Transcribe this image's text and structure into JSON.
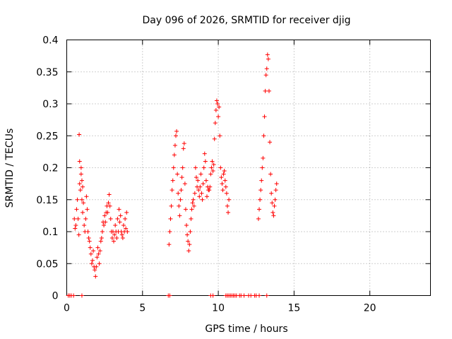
{
  "chart_data": {
    "type": "scatter",
    "title": "Day 096 of 2026, SRMTID for receiver djig",
    "xlabel": "GPS time / hours",
    "ylabel": "SRMTID / TECUs",
    "xlim": [
      0,
      24
    ],
    "ylim": [
      0,
      0.4
    ],
    "xticks": [
      0,
      5,
      10,
      15,
      20
    ],
    "xtick_labels": [
      "0",
      "5",
      "10",
      "15",
      "20"
    ],
    "yticks": [
      0,
      0.05,
      0.1,
      0.15,
      0.2,
      0.25,
      0.3,
      0.35,
      0.4
    ],
    "ytick_labels": [
      "0",
      "0.05",
      "0.1",
      "0.15",
      "0.2",
      "0.25",
      "0.3",
      "0.35",
      "0.4"
    ],
    "grid": true,
    "marker": "plus",
    "color": "#ff0000",
    "series": [
      {
        "name": "SRMTID",
        "points": [
          [
            0.5,
            0.12
          ],
          [
            0.55,
            0.105
          ],
          [
            0.6,
            0.11
          ],
          [
            0.65,
            0.135
          ],
          [
            0.7,
            0.15
          ],
          [
            0.75,
            0.12
          ],
          [
            0.8,
            0.095
          ],
          [
            0.85,
            0.175
          ],
          [
            0.9,
            0.165
          ],
          [
            0.95,
            0.2
          ],
          [
            1.0,
            0.15
          ],
          [
            1.05,
            0.13
          ],
          [
            1.1,
            0.145
          ],
          [
            1.15,
            0.11
          ],
          [
            1.2,
            0.1
          ],
          [
            1.25,
            0.12
          ],
          [
            1.3,
            0.155
          ],
          [
            1.35,
            0.135
          ],
          [
            1.4,
            0.1
          ],
          [
            1.45,
            0.09
          ],
          [
            1.5,
            0.085
          ],
          [
            0.82,
            0.252
          ],
          [
            0.85,
            0.21
          ],
          [
            0.95,
            0.19
          ],
          [
            1.0,
            0.18
          ],
          [
            1.05,
            0.17
          ],
          [
            1.55,
            0.075
          ],
          [
            1.6,
            0.065
          ],
          [
            1.65,
            0.05
          ],
          [
            1.7,
            0.055
          ],
          [
            1.75,
            0.07
          ],
          [
            1.8,
            0.045
          ],
          [
            1.85,
            0.04
          ],
          [
            1.9,
            0.03
          ],
          [
            1.95,
            0.045
          ],
          [
            2.0,
            0.06
          ],
          [
            2.05,
            0.075
          ],
          [
            2.1,
            0.065
          ],
          [
            2.15,
            0.05
          ],
          [
            2.2,
            0.07
          ],
          [
            2.25,
            0.085
          ],
          [
            2.3,
            0.09
          ],
          [
            2.35,
            0.1
          ],
          [
            2.4,
            0.115
          ],
          [
            2.45,
            0.11
          ],
          [
            2.5,
            0.125
          ],
          [
            2.55,
            0.115
          ],
          [
            2.6,
            0.13
          ],
          [
            2.65,
            0.14
          ],
          [
            2.7,
            0.13
          ],
          [
            2.75,
            0.145
          ],
          [
            2.8,
            0.158
          ],
          [
            2.85,
            0.14
          ],
          [
            2.9,
            0.12
          ],
          [
            2.95,
            0.1
          ],
          [
            3.0,
            0.09
          ],
          [
            3.05,
            0.1
          ],
          [
            3.1,
            0.085
          ],
          [
            3.15,
            0.095
          ],
          [
            3.2,
            0.11
          ],
          [
            3.25,
            0.1
          ],
          [
            3.3,
            0.09
          ],
          [
            3.35,
            0.12
          ],
          [
            3.4,
            0.1
          ],
          [
            3.45,
            0.135
          ],
          [
            3.5,
            0.115
          ],
          [
            3.55,
            0.125
          ],
          [
            3.6,
            0.1
          ],
          [
            3.65,
            0.095
          ],
          [
            3.7,
            0.09
          ],
          [
            3.75,
            0.11
          ],
          [
            3.8,
            0.1
          ],
          [
            3.85,
            0.12
          ],
          [
            3.9,
            0.105
          ],
          [
            3.95,
            0.13
          ],
          [
            4.0,
            0.1
          ],
          [
            6.75,
            0.08
          ],
          [
            6.8,
            0.1
          ],
          [
            6.85,
            0.12
          ],
          [
            6.9,
            0.14
          ],
          [
            6.95,
            0.165
          ],
          [
            7.0,
            0.18
          ],
          [
            7.05,
            0.2
          ],
          [
            7.1,
            0.22
          ],
          [
            7.15,
            0.235
          ],
          [
            7.2,
            0.25
          ],
          [
            7.25,
            0.257
          ],
          [
            7.3,
            0.19
          ],
          [
            7.35,
            0.16
          ],
          [
            7.4,
            0.14
          ],
          [
            7.45,
            0.125
          ],
          [
            7.5,
            0.15
          ],
          [
            7.55,
            0.165
          ],
          [
            7.6,
            0.185
          ],
          [
            7.65,
            0.2
          ],
          [
            7.7,
            0.23
          ],
          [
            7.75,
            0.238
          ],
          [
            7.8,
            0.175
          ],
          [
            7.85,
            0.135
          ],
          [
            7.9,
            0.11
          ],
          [
            7.95,
            0.095
          ],
          [
            8.0,
            0.085
          ],
          [
            8.05,
            0.07
          ],
          [
            8.1,
            0.08
          ],
          [
            8.15,
            0.1
          ],
          [
            8.2,
            0.12
          ],
          [
            8.25,
            0.135
          ],
          [
            8.3,
            0.145
          ],
          [
            8.35,
            0.15
          ],
          [
            8.4,
            0.14
          ],
          [
            8.45,
            0.16
          ],
          [
            8.5,
            0.2
          ],
          [
            8.55,
            0.185
          ],
          [
            8.6,
            0.17
          ],
          [
            8.65,
            0.18
          ],
          [
            8.7,
            0.165
          ],
          [
            8.75,
            0.155
          ],
          [
            8.8,
            0.17
          ],
          [
            8.85,
            0.19
          ],
          [
            8.9,
            0.16
          ],
          [
            8.95,
            0.15
          ],
          [
            9.0,
            0.175
          ],
          [
            9.05,
            0.2
          ],
          [
            9.1,
            0.222
          ],
          [
            9.15,
            0.21
          ],
          [
            9.2,
            0.18
          ],
          [
            9.25,
            0.155
          ],
          [
            9.3,
            0.17
          ],
          [
            9.35,
            0.165
          ],
          [
            9.4,
            0.165
          ],
          [
            9.45,
            0.17
          ],
          [
            9.5,
            0.19
          ],
          [
            9.55,
            0.2
          ],
          [
            9.6,
            0.21
          ],
          [
            9.65,
            0.195
          ],
          [
            9.7,
            0.205
          ],
          [
            9.75,
            0.245
          ],
          [
            9.8,
            0.27
          ],
          [
            9.85,
            0.29
          ],
          [
            9.9,
            0.305
          ],
          [
            9.95,
            0.3
          ],
          [
            10.0,
            0.28
          ],
          [
            10.05,
            0.295
          ],
          [
            10.1,
            0.25
          ],
          [
            10.15,
            0.2
          ],
          [
            10.2,
            0.185
          ],
          [
            10.25,
            0.175
          ],
          [
            10.3,
            0.165
          ],
          [
            10.35,
            0.19
          ],
          [
            10.4,
            0.195
          ],
          [
            10.45,
            0.18
          ],
          [
            10.5,
            0.17
          ],
          [
            10.55,
            0.16
          ],
          [
            10.6,
            0.14
          ],
          [
            10.65,
            0.13
          ],
          [
            10.7,
            0.15
          ],
          [
            12.65,
            0.12
          ],
          [
            12.7,
            0.135
          ],
          [
            12.75,
            0.15
          ],
          [
            12.8,
            0.165
          ],
          [
            12.85,
            0.18
          ],
          [
            12.9,
            0.2
          ],
          [
            12.95,
            0.215
          ],
          [
            13.0,
            0.25
          ],
          [
            13.05,
            0.28
          ],
          [
            13.1,
            0.32
          ],
          [
            13.15,
            0.345
          ],
          [
            13.2,
            0.355
          ],
          [
            13.25,
            0.377
          ],
          [
            13.3,
            0.37
          ],
          [
            13.35,
            0.32
          ],
          [
            13.4,
            0.24
          ],
          [
            13.45,
            0.19
          ],
          [
            13.5,
            0.16
          ],
          [
            13.55,
            0.145
          ],
          [
            13.6,
            0.13
          ],
          [
            13.65,
            0.125
          ],
          [
            13.7,
            0.14
          ],
          [
            13.75,
            0.15
          ],
          [
            13.8,
            0.165
          ],
          [
            13.85,
            0.175
          ]
        ]
      },
      {
        "name": "zero-line",
        "points": [
          [
            0.1,
            0
          ],
          [
            0.2,
            0
          ],
          [
            0.3,
            0
          ],
          [
            0.45,
            0
          ],
          [
            1.0,
            0
          ],
          [
            6.7,
            0
          ],
          [
            6.8,
            0
          ],
          [
            9.5,
            0
          ],
          [
            9.65,
            0
          ],
          [
            10.5,
            0
          ],
          [
            10.6,
            0
          ],
          [
            10.7,
            0
          ],
          [
            10.8,
            0
          ],
          [
            10.9,
            0
          ],
          [
            11.0,
            0
          ],
          [
            11.1,
            0
          ],
          [
            11.2,
            0
          ],
          [
            11.4,
            0
          ],
          [
            11.5,
            0
          ],
          [
            11.7,
            0
          ],
          [
            12.0,
            0
          ],
          [
            12.15,
            0
          ],
          [
            12.4,
            0
          ],
          [
            12.5,
            0
          ],
          [
            12.7,
            0
          ],
          [
            13.2,
            0
          ]
        ]
      }
    ]
  }
}
